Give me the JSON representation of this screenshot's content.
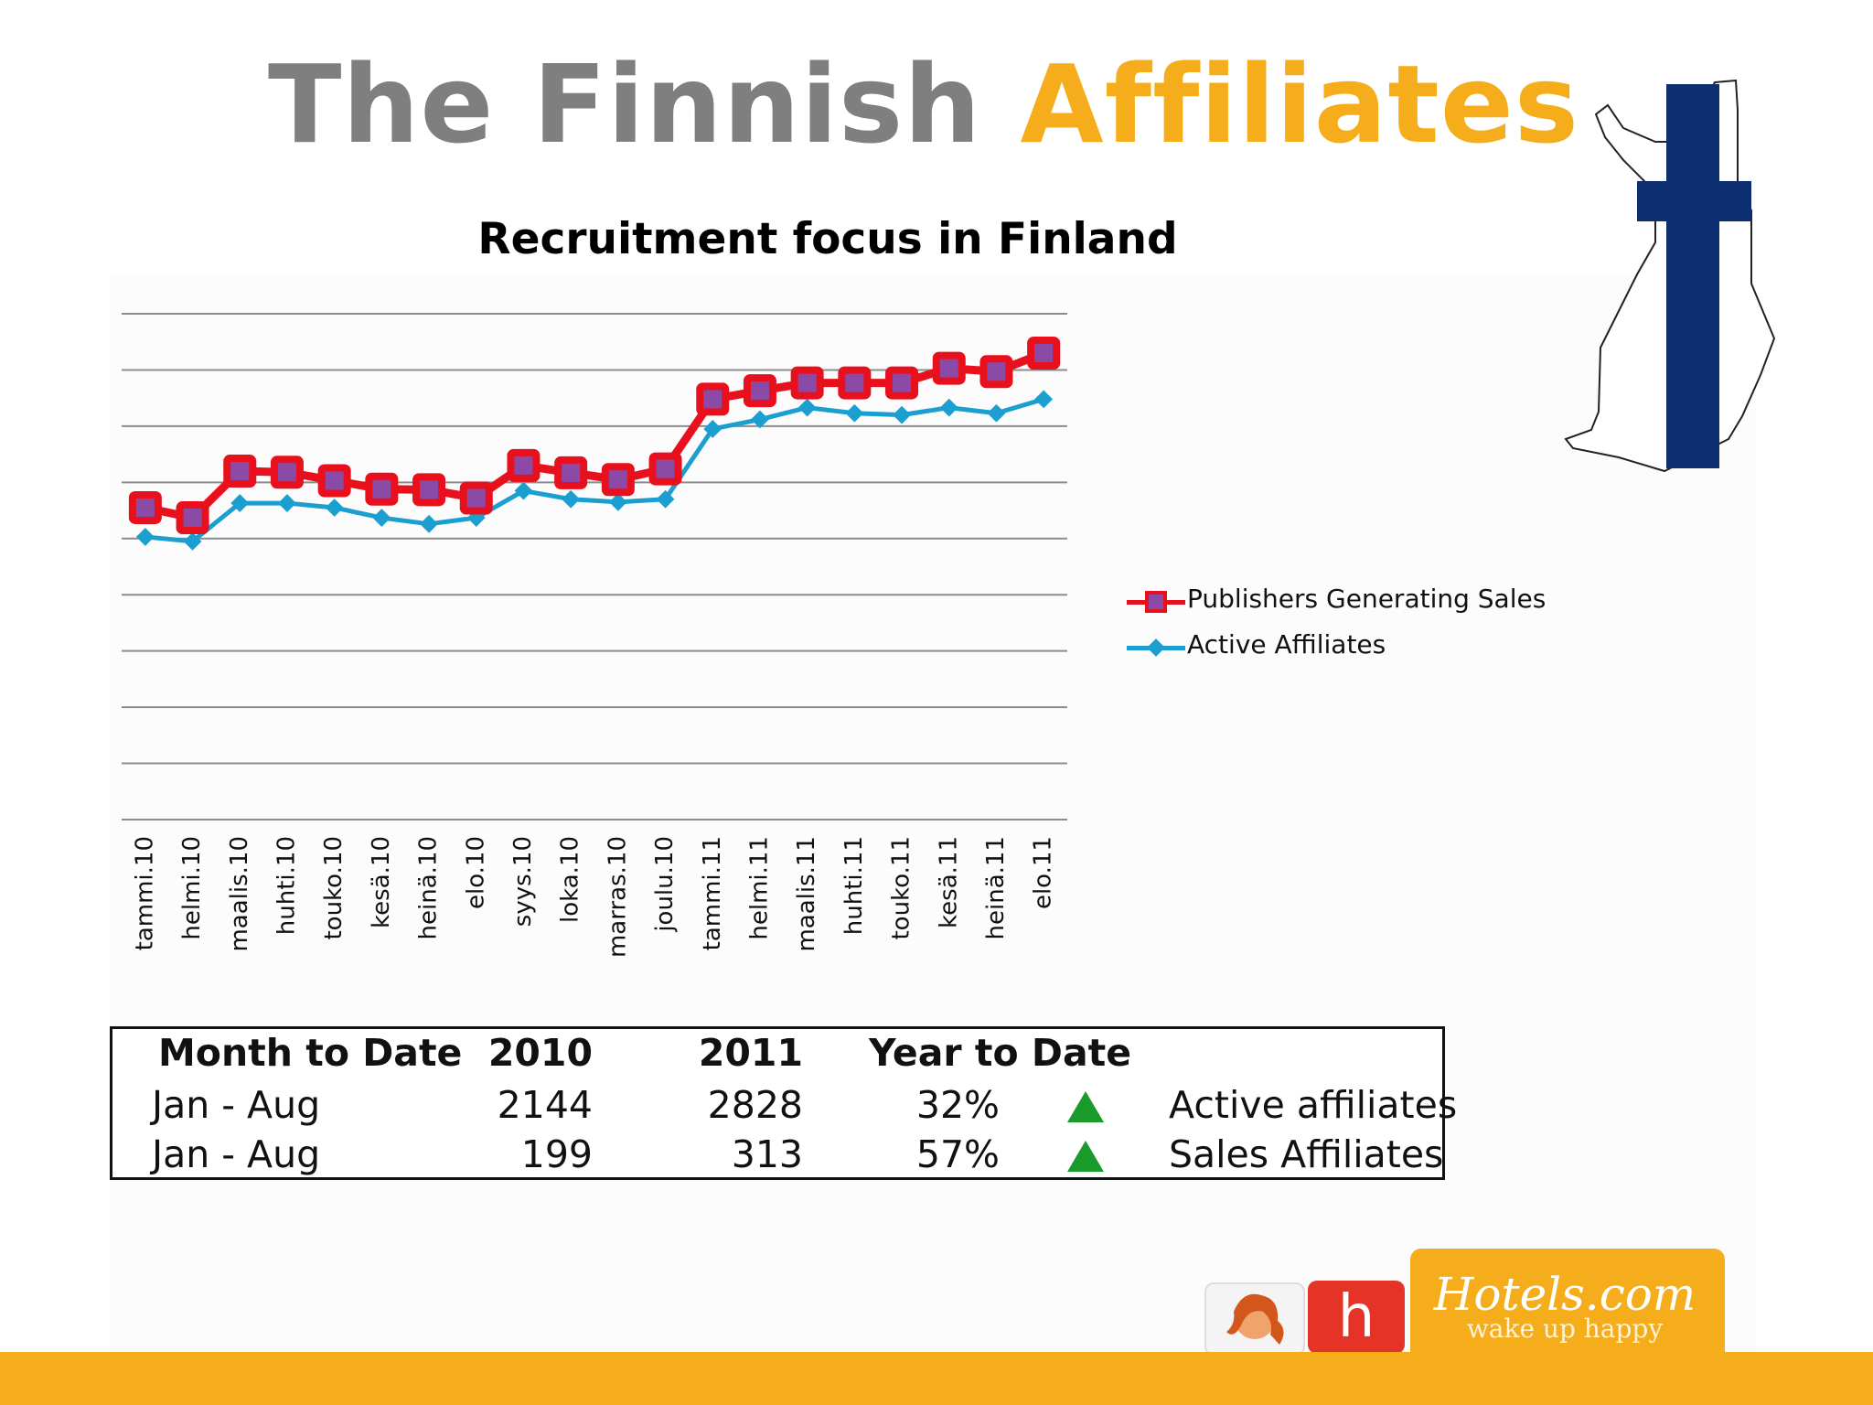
{
  "title": {
    "part1": "The Finnish",
    "part2": "Affiliates"
  },
  "chart_data": {
    "type": "line",
    "title": "Recruitment focus in Finland",
    "categories": [
      "tammi.10",
      "helmi.10",
      "maalis.10",
      "huhti.10",
      "touko.10",
      "kesä.10",
      "heinä.10",
      "elo.10",
      "syys.10",
      "loka.10",
      "marras.10",
      "joulu.10",
      "tammi.11",
      "helmi.11",
      "maalis.11",
      "huhti.11",
      "touko.11",
      "kesä.11",
      "heinä.11",
      "elo.11"
    ],
    "series": [
      {
        "name": "Publishers Generating Sales",
        "color": "#e8101c",
        "marker_fill": "#8a4aa6",
        "values": [
          5.55,
          5.37,
          6.2,
          6.18,
          6.03,
          5.88,
          5.87,
          5.72,
          6.3,
          6.17,
          6.05,
          6.24,
          7.48,
          7.63,
          7.77,
          7.77,
          7.77,
          8.03,
          7.97,
          8.3
        ]
      },
      {
        "name": "Active Affiliates",
        "color": "#1b9fd0",
        "values": [
          5.03,
          4.95,
          5.63,
          5.63,
          5.55,
          5.37,
          5.26,
          5.37,
          5.85,
          5.7,
          5.65,
          5.7,
          6.95,
          7.12,
          7.33,
          7.23,
          7.2,
          7.33,
          7.23,
          7.48
        ]
      }
    ],
    "ylim": [
      0,
      9
    ],
    "y_ticks_labeled": false,
    "grid": true,
    "legend_position": "right"
  },
  "table": {
    "headers": [
      "Month to Date",
      "2010",
      "2011",
      "Year to Date"
    ],
    "rows": [
      {
        "period": "Jan - Aug",
        "y2010": "2144",
        "y2011": "2828",
        "ytd": "32%",
        "trend": "up",
        "label": "Active affiliates"
      },
      {
        "period": "Jan - Aug",
        "y2010": "199",
        "y2011": "313",
        "ytd": "57%",
        "trend": "up",
        "label": "Sales Affiliates"
      }
    ],
    "trend_color": "#1a9a2a"
  },
  "brand": {
    "logo": "Hotels.com",
    "tagline": "wake up happy",
    "badge_letter": "h",
    "accent": "#f5ad1b"
  },
  "map_icon": "finland-flag-map"
}
